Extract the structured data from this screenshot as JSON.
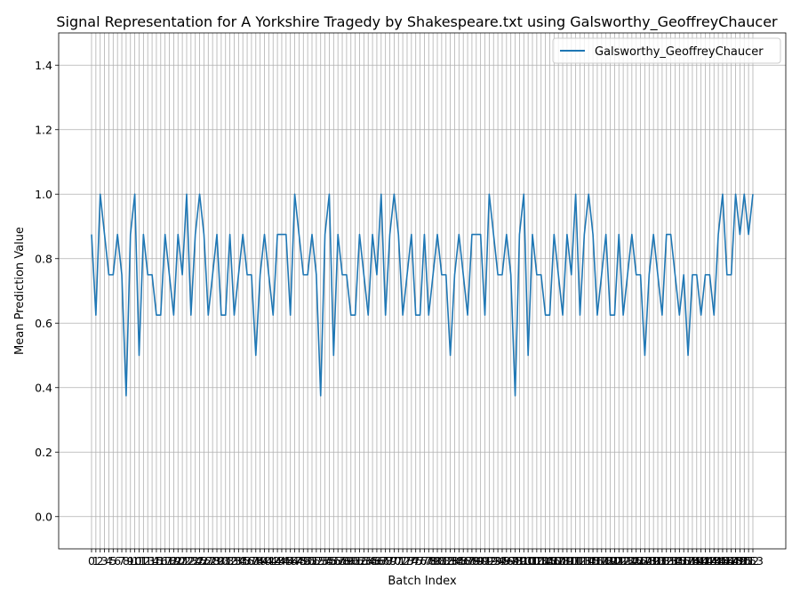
{
  "chart_data": {
    "type": "line",
    "title": "Signal Representation for A Yorkshire Tragedy by Shakespeare.txt using Galsworthy_GeoffreyChaucer",
    "xlabel": "Batch Index",
    "ylabel": "Mean Prediction Value",
    "xlim": [
      0,
      153
    ],
    "ylim": [
      -0.1,
      1.5
    ],
    "yticks": [
      0.0,
      0.2,
      0.4,
      0.6,
      0.8,
      1.0,
      1.2,
      1.4
    ],
    "grid": true,
    "legend_position": "top-right",
    "series": [
      {
        "name": "Galsworthy_GeoffreyChaucer",
        "color": "#1f77b4",
        "x": [
          0,
          1,
          2,
          3,
          4,
          5,
          6,
          7,
          8,
          9,
          10,
          11,
          12,
          13,
          14,
          15,
          16,
          17,
          18,
          19,
          20,
          21,
          22,
          23,
          24,
          25,
          26,
          27,
          28,
          29,
          30,
          31,
          32,
          33,
          34,
          35,
          36,
          37,
          38,
          39,
          40,
          41,
          42,
          43,
          44,
          45,
          46,
          47,
          48,
          49,
          50,
          51,
          52,
          53,
          54,
          55,
          56,
          57,
          58,
          59,
          60,
          61,
          62,
          63,
          64,
          65,
          66,
          67,
          68,
          69,
          70,
          71,
          72,
          73,
          74,
          75,
          76,
          77,
          78,
          79,
          80,
          81,
          82,
          83,
          84,
          85,
          86,
          87,
          88,
          89,
          90,
          91,
          92,
          93,
          94,
          95,
          96,
          97,
          98,
          99,
          100,
          101,
          102,
          103,
          104,
          105,
          106,
          107,
          108,
          109,
          110,
          111,
          112,
          113,
          114,
          115,
          116,
          117,
          118,
          119,
          120,
          121,
          122,
          123,
          124,
          125,
          126,
          127,
          128,
          129,
          130,
          131,
          132,
          133,
          134,
          135,
          136,
          137,
          138,
          139,
          140,
          141,
          142,
          143,
          144,
          145,
          146,
          147,
          148,
          149,
          150,
          151,
          152,
          153
        ],
        "values": [
          0.875,
          0.625,
          1.0,
          0.875,
          0.75,
          0.75,
          0.875,
          0.75,
          0.375,
          0.875,
          1.0,
          0.5,
          0.875,
          0.75,
          0.75,
          0.625,
          0.625,
          0.875,
          0.75,
          0.625,
          0.875,
          0.75,
          1.0,
          0.625,
          0.875,
          1.0,
          0.875,
          0.625,
          0.75,
          0.875,
          0.625,
          0.625,
          0.875,
          0.625,
          0.75,
          0.875,
          0.75,
          0.75,
          0.5,
          0.75,
          0.875,
          0.75,
          0.625,
          0.875,
          0.875,
          0.875,
          0.625,
          1.0,
          0.875,
          0.75,
          0.75,
          0.875,
          0.75,
          0.375,
          0.875,
          1.0,
          0.5,
          0.875,
          0.75,
          0.75,
          0.625,
          0.625,
          0.875,
          0.75,
          0.625,
          0.875,
          0.75,
          1.0,
          0.625,
          0.875,
          1.0,
          0.875,
          0.625,
          0.75,
          0.875,
          0.625,
          0.625,
          0.875,
          0.625,
          0.75,
          0.875,
          0.75,
          0.75,
          0.5,
          0.75,
          0.875,
          0.75,
          0.625,
          0.875,
          0.875,
          0.875,
          0.625,
          1.0,
          0.875,
          0.75,
          0.75,
          0.875,
          0.75,
          0.375,
          0.875,
          1.0,
          0.5,
          0.875,
          0.75,
          0.75,
          0.625,
          0.625,
          0.875,
          0.75,
          0.625,
          0.875,
          0.75,
          1.0,
          0.625,
          0.875,
          1.0,
          0.875,
          0.625,
          0.75,
          0.875,
          0.625,
          0.625,
          0.875,
          0.625,
          0.75,
          0.875,
          0.75,
          0.75,
          0.5,
          0.75,
          0.875,
          0.75,
          0.625,
          0.875,
          0.875,
          0.75,
          0.625,
          0.75,
          0.5,
          0.75,
          0.75,
          0.625,
          0.75,
          0.75,
          0.625,
          0.875,
          1.0,
          0.75,
          0.75,
          1.0,
          0.875,
          1.0,
          0.875,
          1.0
        ]
      }
    ]
  }
}
